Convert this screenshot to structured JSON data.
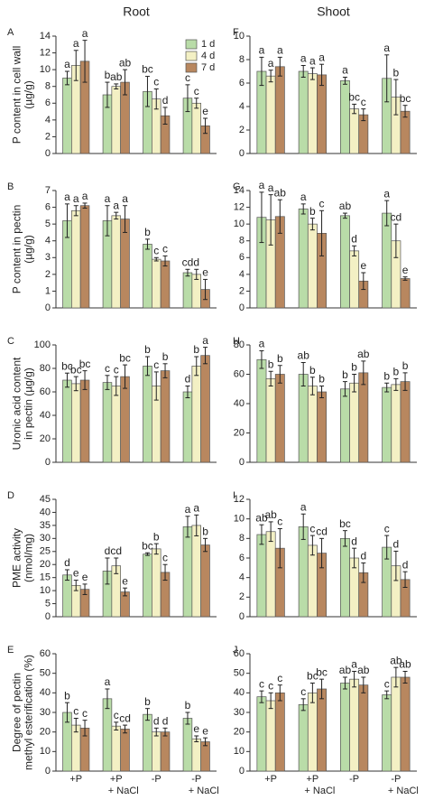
{
  "legend": [
    {
      "name": "1 d",
      "color": "#b9dca8"
    },
    {
      "name": "4 d",
      "color": "#f3f0c4"
    },
    {
      "name": "7 d",
      "color": "#b8875f"
    }
  ],
  "categories": [
    [
      "+P"
    ],
    [
      "+P",
      "+ NaCl"
    ],
    [
      "-P"
    ],
    [
      "-P",
      "+ NaCl"
    ]
  ],
  "chart_data": [
    {
      "type": "bar",
      "panel": "A",
      "title": "Root",
      "ylabel": [
        "P content in cell wall",
        "(µg/g)"
      ],
      "ylim": [
        0,
        14
      ],
      "yticks": [
        0,
        2,
        4,
        6,
        8,
        10,
        12,
        14
      ],
      "series": [
        {
          "values": [
            9.0,
            7.0,
            7.4,
            6.6
          ],
          "errors": [
            0.8,
            1.5,
            1.8,
            1.6
          ],
          "letters": [
            "a",
            "b",
            "bc",
            "c"
          ]
        },
        {
          "values": [
            10.5,
            8.0,
            6.5,
            6.0
          ],
          "errors": [
            1.8,
            0.3,
            1.2,
            0.6
          ],
          "letters": [
            "a",
            "ab",
            "c",
            "c"
          ]
        },
        {
          "values": [
            11.0,
            8.5,
            4.5,
            3.3
          ],
          "errors": [
            2.5,
            1.5,
            1.0,
            0.9
          ],
          "letters": [
            "a",
            "ab",
            "d",
            "e"
          ]
        }
      ]
    },
    {
      "type": "bar",
      "panel": "B",
      "ylabel": [
        "P content in pectin",
        "(µg/g)"
      ],
      "ylim": [
        0,
        7
      ],
      "yticks": [
        0,
        1,
        2,
        3,
        4,
        5,
        6,
        7
      ],
      "series": [
        {
          "values": [
            5.2,
            5.2,
            3.8,
            2.1
          ],
          "errors": [
            1.0,
            0.9,
            0.3,
            0.2
          ],
          "letters": [
            "a",
            "a",
            "b",
            "cd"
          ]
        },
        {
          "values": [
            5.8,
            5.5,
            2.9,
            2.0
          ],
          "errors": [
            0.3,
            0.2,
            0.1,
            0.3
          ],
          "letters": [
            "a",
            "a",
            "c",
            "d"
          ]
        },
        {
          "values": [
            6.1,
            5.3,
            2.8,
            1.1
          ],
          "errors": [
            0.15,
            0.8,
            0.3,
            0.6
          ],
          "letters": [
            "a",
            "a",
            "c",
            "e"
          ]
        }
      ]
    },
    {
      "type": "bar",
      "panel": "C",
      "ylabel": [
        "Uronic acid content",
        "in pectin (µg/g)"
      ],
      "ylim": [
        0,
        100
      ],
      "yticks": [
        0,
        20,
        40,
        60,
        80,
        100
      ],
      "series": [
        {
          "values": [
            70,
            68,
            82,
            60
          ],
          "errors": [
            6,
            6,
            8,
            5
          ],
          "letters": [
            "bc",
            "c",
            "b",
            "d"
          ]
        },
        {
          "values": [
            67,
            65,
            65,
            82
          ],
          "errors": [
            6,
            8,
            12,
            8
          ],
          "letters": [
            "bc",
            "c",
            "c",
            "b"
          ]
        },
        {
          "values": [
            70,
            73,
            78,
            91
          ],
          "errors": [
            8,
            10,
            6,
            7
          ],
          "letters": [
            "bc",
            "bc",
            "b",
            "a"
          ]
        }
      ]
    },
    {
      "type": "bar",
      "panel": "D",
      "ylabel": [
        "PME activity",
        "(nmol/mg)"
      ],
      "ylim": [
        0,
        45
      ],
      "yticks": [
        0,
        5,
        10,
        15,
        20,
        25,
        30,
        35,
        40,
        45
      ],
      "series": [
        {
          "values": [
            16,
            17.5,
            24,
            34.5
          ],
          "errors": [
            2,
            5,
            0.5,
            4
          ],
          "letters": [
            "d",
            "d",
            "bc",
            "a"
          ]
        },
        {
          "values": [
            12,
            19.5,
            26,
            35
          ],
          "errors": [
            2,
            3,
            2,
            4
          ],
          "letters": [
            "e",
            "cd",
            "b",
            "a"
          ]
        },
        {
          "values": [
            10.5,
            9.5,
            17,
            27.5
          ],
          "errors": [
            2,
            1.5,
            3,
            2.5
          ],
          "letters": [
            "e",
            "e",
            "c",
            "b"
          ]
        }
      ]
    },
    {
      "type": "bar",
      "panel": "E",
      "ylabel": [
        "Degree of pectin",
        "methyl esterification (%)"
      ],
      "ylim": [
        0,
        60
      ],
      "yticks": [
        0,
        10,
        20,
        30,
        40,
        50,
        60
      ],
      "series": [
        {
          "values": [
            30,
            37,
            29,
            27
          ],
          "errors": [
            5,
            5,
            3,
            3
          ],
          "letters": [
            "b",
            "a",
            "b",
            "b"
          ]
        },
        {
          "values": [
            23.5,
            23,
            20,
            16.5
          ],
          "errors": [
            3.5,
            2,
            2,
            1.5
          ],
          "letters": [
            "c",
            "c",
            "d",
            "e"
          ]
        },
        {
          "values": [
            22,
            21.5,
            20,
            15
          ],
          "errors": [
            4,
            2,
            2,
            2
          ],
          "letters": [
            "c",
            "cd",
            "d",
            "e"
          ]
        }
      ]
    },
    {
      "type": "bar",
      "panel": "F",
      "title": "Shoot",
      "ylim": [
        0,
        10
      ],
      "yticks": [
        0,
        2,
        4,
        6,
        8,
        10
      ],
      "series": [
        {
          "values": [
            7.0,
            7.0,
            6.2,
            6.4
          ],
          "errors": [
            1.2,
            0.5,
            0.3,
            2.0
          ],
          "letters": [
            "a",
            "a",
            "a",
            "a"
          ]
        },
        {
          "values": [
            6.6,
            6.8,
            3.8,
            4.8
          ],
          "errors": [
            0.5,
            0.5,
            0.4,
            1.5
          ],
          "letters": [
            "a",
            "a",
            "bc",
            "b"
          ]
        },
        {
          "values": [
            7.4,
            6.7,
            3.3,
            3.6
          ],
          "errors": [
            0.8,
            0.9,
            0.5,
            0.5
          ],
          "letters": [
            "a",
            "a",
            "c",
            "bc"
          ]
        }
      ]
    },
    {
      "type": "bar",
      "panel": "G",
      "ylim": [
        0,
        14
      ],
      "yticks": [
        0,
        2,
        4,
        6,
        8,
        10,
        12,
        14
      ],
      "series": [
        {
          "values": [
            10.8,
            11.8,
            11.0,
            11.3
          ],
          "errors": [
            3,
            0.6,
            0.3,
            1.5
          ],
          "letters": [
            "a",
            "a",
            "ab",
            "a"
          ]
        },
        {
          "values": [
            10.5,
            10.0,
            6.8,
            8.0
          ],
          "errors": [
            3,
            0.7,
            0.6,
            2
          ],
          "letters": [
            "a",
            "b",
            "d",
            "cd"
          ]
        },
        {
          "values": [
            10.9,
            8.9,
            3.2,
            3.5
          ],
          "errors": [
            2,
            2.7,
            1,
            0.2
          ],
          "letters": [
            "ab",
            "c",
            "e",
            "e"
          ]
        }
      ]
    },
    {
      "type": "bar",
      "panel": "H",
      "ylim": [
        0,
        80
      ],
      "yticks": [
        0,
        20,
        40,
        60,
        80
      ],
      "series": [
        {
          "values": [
            70,
            60,
            50,
            51
          ],
          "errors": [
            6,
            8,
            5,
            3
          ],
          "letters": [
            "a",
            "ab",
            "b",
            "b"
          ]
        },
        {
          "values": [
            57,
            52,
            54,
            53
          ],
          "errors": [
            5,
            6,
            6,
            4
          ],
          "letters": [
            "b",
            "b",
            "b",
            "b"
          ]
        },
        {
          "values": [
            60,
            48,
            61,
            55
          ],
          "errors": [
            6,
            4,
            8,
            6
          ],
          "letters": [
            "b",
            "b",
            "ab",
            "b"
          ]
        }
      ]
    },
    {
      "type": "bar",
      "panel": "I",
      "ylim": [
        0,
        12
      ],
      "yticks": [
        0,
        2,
        4,
        6,
        8,
        10,
        12
      ],
      "series": [
        {
          "values": [
            8.4,
            9.2,
            8.0,
            7.1
          ],
          "errors": [
            1,
            1.3,
            0.8,
            1.2
          ],
          "letters": [
            "ab",
            "a",
            "bc",
            "c"
          ]
        },
        {
          "values": [
            8.7,
            7.3,
            6.0,
            5.2
          ],
          "errors": [
            1,
            1,
            1,
            1.5
          ],
          "letters": [
            "ab",
            "c",
            "d",
            "d"
          ]
        },
        {
          "values": [
            7.0,
            6.5,
            4.5,
            3.8
          ],
          "errors": [
            2,
            1.5,
            1,
            0.8
          ],
          "letters": [
            "c",
            "cd",
            "d",
            "d"
          ]
        }
      ]
    },
    {
      "type": "bar",
      "panel": "J",
      "ylim": [
        0,
        60
      ],
      "yticks": [
        0,
        10,
        20,
        30,
        40,
        50,
        60
      ],
      "series": [
        {
          "values": [
            38,
            34,
            45,
            39
          ],
          "errors": [
            3,
            3,
            3,
            2
          ],
          "letters": [
            "c",
            "c",
            "ab",
            "c"
          ]
        },
        {
          "values": [
            36,
            40,
            47,
            48
          ],
          "errors": [
            4,
            5,
            4,
            5
          ],
          "letters": [
            "c",
            "bc",
            "a",
            "ab"
          ]
        },
        {
          "values": [
            40,
            42,
            44,
            48
          ],
          "errors": [
            4,
            5,
            4,
            3
          ],
          "letters": [
            "c",
            "bc",
            "ab",
            "ab"
          ]
        }
      ]
    }
  ]
}
